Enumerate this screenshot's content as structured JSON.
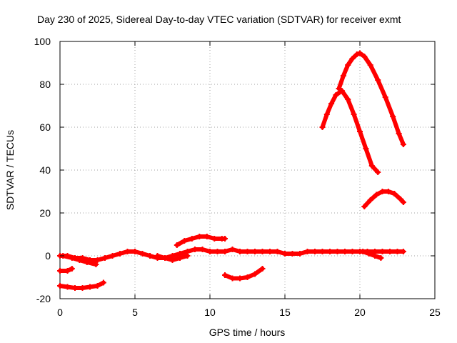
{
  "chart_data": {
    "type": "line",
    "title": "Day 230 of 2025, Sidereal Day-to-day VTEC variation (SDTVAR) for receiver exmt",
    "xlabel": "GPS time / hours",
    "ylabel": "SDTVAR / TECUs",
    "xlim": [
      0,
      25
    ],
    "ylim": [
      -20,
      100
    ],
    "xticks": [
      "0",
      "5",
      "10",
      "15",
      "20",
      "25"
    ],
    "yticks": [
      "-20",
      "0",
      "20",
      "40",
      "60",
      "80",
      "100"
    ],
    "grid": true,
    "color": "#ff0000",
    "series": [
      {
        "name": "arc-1",
        "x": [
          0.0,
          0.5,
          1.0,
          1.5,
          2.0,
          2.5,
          3.0,
          3.5,
          4.0,
          4.5,
          5.0,
          5.5,
          6.0,
          6.5,
          7.0,
          7.5,
          8.0,
          8.5,
          9.0,
          9.5,
          10.0,
          10.5,
          11.0,
          11.5,
          12.0,
          12.5,
          13.0,
          13.5,
          14.0,
          14.5,
          15.0,
          15.5,
          16.0,
          16.5,
          17.0,
          17.5,
          18.0,
          18.5,
          19.0,
          19.5,
          20.0,
          20.5,
          21.0,
          21.5,
          22.0,
          22.5,
          22.9
        ],
        "y": [
          0,
          0,
          -1,
          -1,
          -2,
          -2,
          -1,
          0,
          1,
          2,
          2,
          1,
          0,
          -1,
          -1,
          0,
          1,
          2,
          3,
          3,
          2,
          2,
          2,
          3,
          2,
          2,
          2,
          2,
          2,
          2,
          1,
          1,
          1,
          2,
          2,
          2,
          2,
          2,
          2,
          2,
          2,
          2,
          2,
          2,
          2,
          2,
          2
        ]
      },
      {
        "name": "arc-2",
        "x": [
          0.0,
          0.5,
          0.8
        ],
        "y": [
          -7,
          -7,
          -6
        ]
      },
      {
        "name": "arc-3",
        "x": [
          0.0,
          0.5,
          1.0,
          1.5,
          2.0,
          2.5,
          2.9
        ],
        "y": [
          -14,
          -14.5,
          -15,
          -15,
          -14.5,
          -14,
          -12.5
        ]
      },
      {
        "name": "arc-4",
        "x": [
          0.2,
          0.8,
          1.3,
          1.8,
          2.4
        ],
        "y": [
          0,
          -1,
          -2,
          -3,
          -4
        ]
      },
      {
        "name": "arc-5",
        "x": [
          7.8,
          8.3,
          8.8,
          9.3,
          9.8,
          10.3,
          10.8,
          11.0
        ],
        "y": [
          5,
          7,
          8,
          9,
          9,
          8,
          8,
          8
        ]
      },
      {
        "name": "arc-6",
        "x": [
          6.5,
          7.0,
          7.5,
          8.0,
          8.5
        ],
        "y": [
          0,
          -1,
          -2,
          -1,
          0
        ]
      },
      {
        "name": "arc-7",
        "x": [
          11.0,
          11.5,
          12.0,
          12.5,
          13.0,
          13.5
        ],
        "y": [
          -9,
          -10.5,
          -10.5,
          -10,
          -8.5,
          -6
        ]
      },
      {
        "name": "arc-8",
        "x": [
          17.5,
          17.8,
          18.1,
          18.4,
          18.8,
          19.2,
          19.6,
          20.0,
          20.4,
          20.8,
          21.2
        ],
        "y": [
          60,
          66,
          71,
          75,
          77,
          73,
          66,
          58,
          50,
          42,
          39
        ]
      },
      {
        "name": "arc-9",
        "x": [
          18.6,
          18.9,
          19.2,
          19.5,
          19.8,
          20.0,
          20.3,
          20.7,
          21.2,
          21.7,
          22.2,
          22.6,
          22.9
        ],
        "y": [
          78,
          84,
          89,
          92,
          94,
          94.5,
          93,
          89,
          82,
          74,
          65,
          57,
          52
        ]
      },
      {
        "name": "arc-10",
        "x": [
          20.3,
          20.7,
          21.1,
          21.5,
          21.9,
          22.3,
          22.7,
          22.9
        ],
        "y": [
          23,
          26,
          28.5,
          30,
          30,
          29,
          26.5,
          25
        ]
      },
      {
        "name": "arc-11",
        "x": [
          20.2,
          20.6,
          21.0,
          21.4
        ],
        "y": [
          2,
          1,
          0,
          -1
        ]
      }
    ]
  }
}
